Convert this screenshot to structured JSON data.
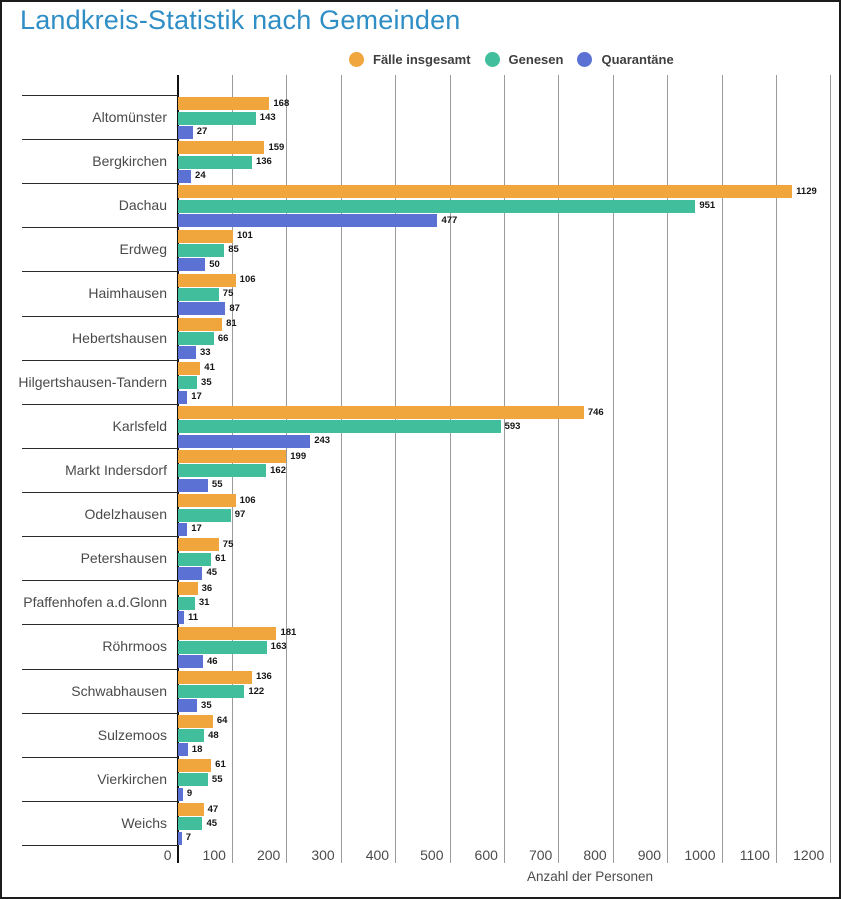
{
  "chart_data": {
    "type": "bar",
    "orientation": "horizontal",
    "title": "Landkreis-Statistik nach Gemeinden",
    "xlabel": "Anzahl der Personen",
    "xlim": [
      0,
      1200
    ],
    "x_ticks": [
      0,
      100,
      200,
      300,
      400,
      500,
      600,
      700,
      800,
      900,
      1000,
      1100,
      1200
    ],
    "grid": true,
    "legend_position": "top",
    "value_labels": true,
    "categories": [
      "Altomünster",
      "Bergkirchen",
      "Dachau",
      "Erdweg",
      "Haimhausen",
      "Hebertshausen",
      "Hilgertshausen-Tandern",
      "Karlsfeld",
      "Markt Indersdorf",
      "Odelzhausen",
      "Petershausen",
      "Pfaffenhofen a.d.Glonn",
      "Röhrmoos",
      "Schwabhausen",
      "Sulzemoos",
      "Vierkirchen",
      "Weichs"
    ],
    "series": [
      {
        "name": "Fälle insgesamt",
        "color": "#F0A63C",
        "values": [
          168,
          159,
          1129,
          101,
          106,
          81,
          41,
          746,
          199,
          106,
          75,
          36,
          181,
          136,
          64,
          61,
          47
        ]
      },
      {
        "name": "Genesen",
        "color": "#41BE9C",
        "values": [
          143,
          136,
          951,
          85,
          75,
          66,
          35,
          593,
          162,
          97,
          61,
          31,
          163,
          122,
          48,
          55,
          45
        ]
      },
      {
        "name": "Quarantäne",
        "color": "#5B72D4",
        "values": [
          27,
          24,
          477,
          50,
          87,
          33,
          17,
          243,
          55,
          17,
          45,
          11,
          46,
          35,
          18,
          9,
          7
        ]
      }
    ]
  },
  "colors": {
    "title": "#2E8EC5",
    "axis_text": "#4C4C4C",
    "category_text": "#4A4A4A",
    "value_label": "#151515",
    "gridline": "#9B9B9B",
    "axis_line": "#111111",
    "separator": "#2B2B2B",
    "legend_text": "#3F3F3F",
    "frame_border": "#1C1C1C",
    "background": "#FFFFFF"
  }
}
